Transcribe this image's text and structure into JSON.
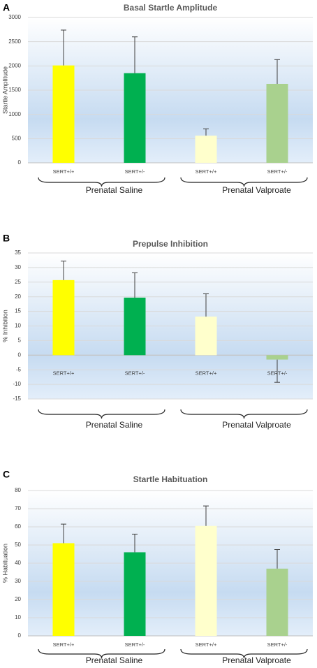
{
  "chart_data": [
    {
      "type": "bar",
      "panel": "A",
      "title": "Basal Startle Amplitude",
      "y_label": "Startle Amplitude",
      "categories": [
        "SERT+/+",
        "SERT+/-",
        "SERT+/+",
        "SERT+/-"
      ],
      "groups": [
        "Prenatal Saline",
        "Prenatal Valproate"
      ],
      "values": [
        2010,
        1850,
        560,
        1630
      ],
      "errors": [
        730,
        750,
        140,
        500
      ],
      "colors": [
        "#ffff00",
        "#00b050",
        "#ffffcc",
        "#a9d18e"
      ],
      "ylim": [
        0,
        3000
      ],
      "yticks": [
        0,
        500,
        1000,
        1500,
        2000,
        2500,
        3000
      ],
      "grid": true
    },
    {
      "type": "bar",
      "panel": "B",
      "title": "Prepulse Inhibition",
      "y_label": "% Inhibition",
      "categories": [
        "SERT+/+",
        "SERT+/-",
        "SERT+/+",
        "SERT+/-"
      ],
      "groups": [
        "Prenatal Saline",
        "Prenatal Valproate"
      ],
      "values": [
        25.7,
        19.7,
        13.2,
        -1.5
      ],
      "errors": [
        6.5,
        8.5,
        7.8,
        7.8
      ],
      "colors": [
        "#ffff00",
        "#00b050",
        "#ffffcc",
        "#a9d18e"
      ],
      "ylim": [
        -15,
        35
      ],
      "yticks": [
        -15,
        -10,
        -5,
        0,
        5,
        10,
        15,
        20,
        25,
        30,
        35
      ],
      "grid": true
    },
    {
      "type": "bar",
      "panel": "C",
      "title": "Startle Habituation",
      "y_label": "% Habituation",
      "categories": [
        "SERT+/+",
        "SERT+/-",
        "SERT+/+",
        "SERT+/-"
      ],
      "groups": [
        "Prenatal Saline",
        "Prenatal Valproate"
      ],
      "values": [
        51,
        46,
        60.5,
        37
      ],
      "errors": [
        10.5,
        10,
        11,
        10.5
      ],
      "colors": [
        "#ffff00",
        "#00b050",
        "#ffffcc",
        "#a9d18e"
      ],
      "ylim": [
        0,
        80
      ],
      "yticks": [
        0,
        10,
        20,
        30,
        40,
        50,
        60,
        70,
        80
      ],
      "grid": true
    }
  ]
}
